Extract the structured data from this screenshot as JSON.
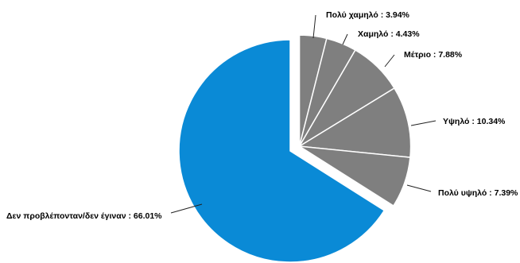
{
  "chart_data": {
    "type": "pie",
    "categories": [
      "Πολύ χαμηλό",
      "Χαμηλό",
      "Μέτριο",
      "Υψηλό",
      "Πολύ υψηλό",
      "Δεν προβλέπονταν/δεν έγιναν"
    ],
    "values": [
      3.94,
      4.43,
      7.88,
      10.34,
      7.39,
      66.01
    ],
    "labels": [
      "Πολύ χαμηλό : 3.94%",
      "Χαμηλό : 4.43%",
      "Μέτριο : 7.88%",
      "Υψηλό : 10.34%",
      "Πολύ υψηλό : 7.39%",
      "Δεν προβλέπονταν/δεν έγιναν : 66.01%"
    ],
    "colors": [
      "#7f7f7f",
      "#7f7f7f",
      "#7f7f7f",
      "#7f7f7f",
      "#7f7f7f",
      "#0a8ad6"
    ],
    "exploded": [
      true,
      true,
      true,
      true,
      true,
      false
    ],
    "unit": "%",
    "title": "",
    "legend": "none"
  }
}
